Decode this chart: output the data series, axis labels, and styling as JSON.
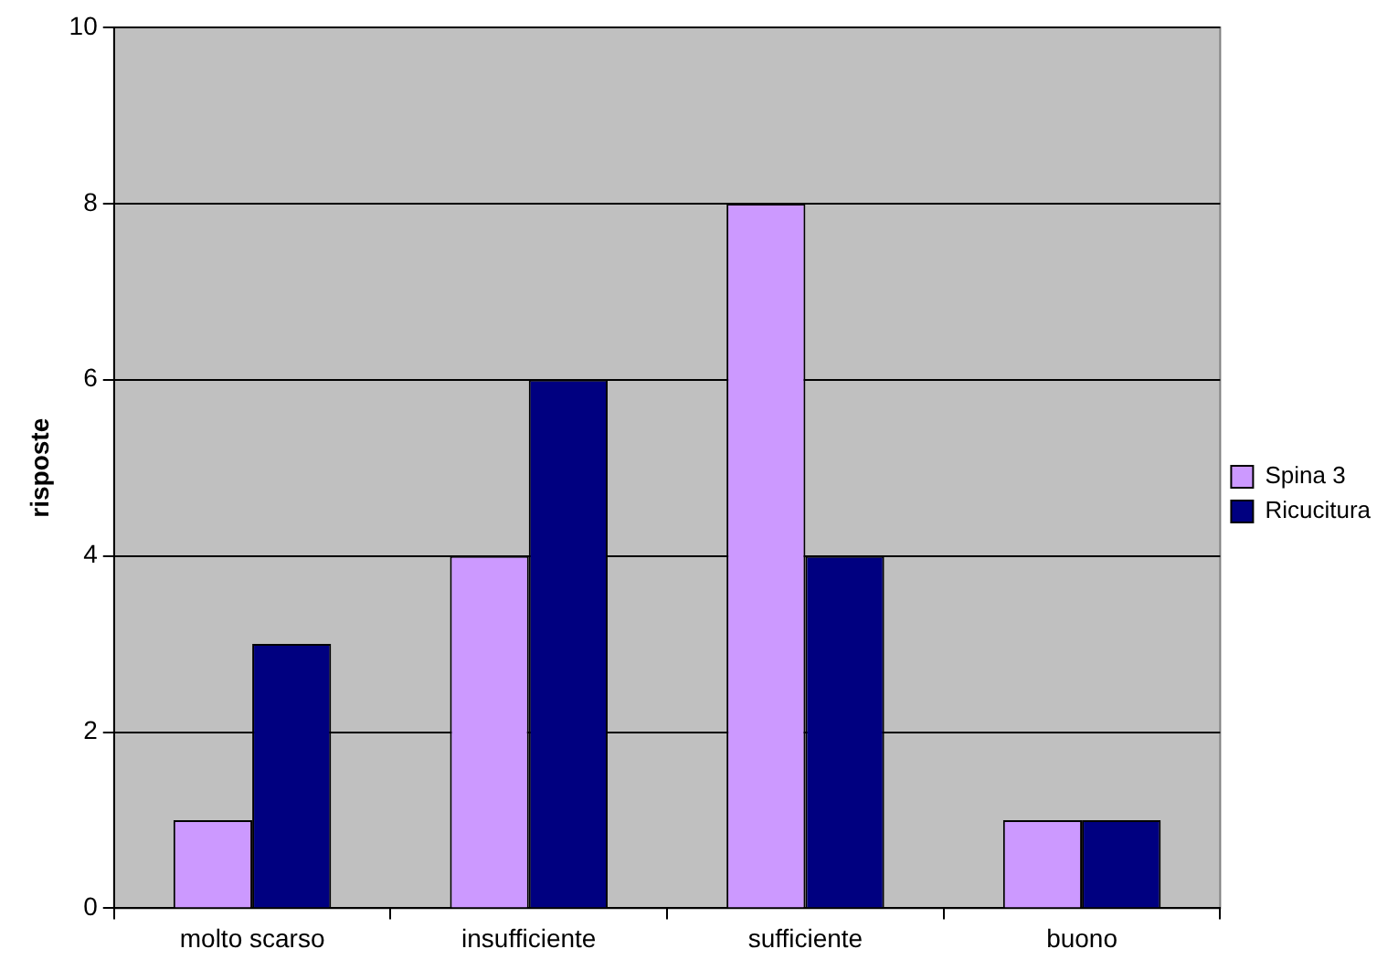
{
  "chart_data": {
    "type": "bar",
    "ylabel": "risposte",
    "categories": [
      "molto scarso",
      "insufficiente",
      "sufficiente",
      "buono"
    ],
    "series": [
      {
        "name": "Spina 3",
        "color": "#cc99ff",
        "values": [
          1,
          4,
          8,
          1
        ]
      },
      {
        "name": "Ricucitura",
        "color": "#000080",
        "values": [
          3,
          6,
          4,
          1
        ]
      }
    ],
    "ylim": [
      0,
      10
    ],
    "yticks": [
      0,
      2,
      4,
      6,
      8,
      10
    ],
    "grid": "y",
    "legend": "right"
  }
}
